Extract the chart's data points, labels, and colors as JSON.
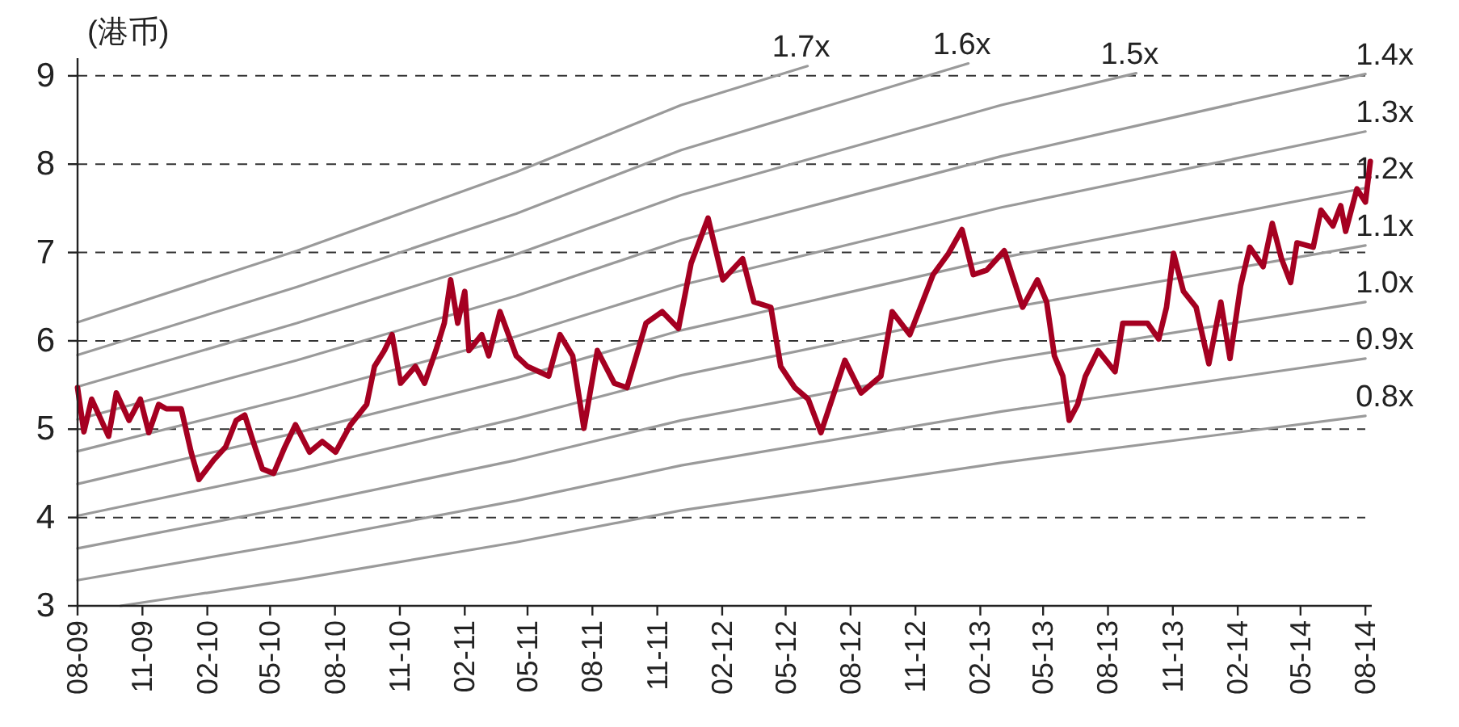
{
  "chart_data": {
    "type": "line",
    "ylabel": "(港币)",
    "grid": "y",
    "ylim": [
      3,
      9.2
    ],
    "yticks": [
      3,
      4,
      5,
      6,
      7,
      8,
      9
    ],
    "xlim": [
      "2009-08-01",
      "2014-08-10"
    ],
    "xticks": [
      {
        "value": "2009-08-01",
        "label": "08-09"
      },
      {
        "value": "2009-11-01",
        "label": "11-09"
      },
      {
        "value": "2010-02-01",
        "label": "02-10"
      },
      {
        "value": "2010-05-01",
        "label": "05-10"
      },
      {
        "value": "2010-08-01",
        "label": "08-10"
      },
      {
        "value": "2010-11-01",
        "label": "11-10"
      },
      {
        "value": "2011-02-01",
        "label": "02-11"
      },
      {
        "value": "2011-05-01",
        "label": "05-11"
      },
      {
        "value": "2011-08-01",
        "label": "08-11"
      },
      {
        "value": "2011-11-01",
        "label": "11-11"
      },
      {
        "value": "2012-02-01",
        "label": "02-12"
      },
      {
        "value": "2012-05-01",
        "label": "05-12"
      },
      {
        "value": "2012-08-01",
        "label": "08-12"
      },
      {
        "value": "2012-11-01",
        "label": "11-12"
      },
      {
        "value": "2013-02-01",
        "label": "02-13"
      },
      {
        "value": "2013-05-01",
        "label": "05-13"
      },
      {
        "value": "2013-08-01",
        "label": "08-13"
      },
      {
        "value": "2013-11-01",
        "label": "11-13"
      },
      {
        "value": "2014-02-01",
        "label": "02-14"
      },
      {
        "value": "2014-05-01",
        "label": "05-14"
      },
      {
        "value": "2014-08-01",
        "label": "08-14"
      }
    ],
    "x": [
      "2009-08-01",
      "2009-08-10",
      "2009-08-21",
      "2009-09-14",
      "2009-09-25",
      "2009-10-13",
      "2009-10-29",
      "2009-11-10",
      "2009-11-24",
      "2009-12-05",
      "2009-12-26",
      "2010-01-09",
      "2010-01-20",
      "2010-02-10",
      "2010-02-27",
      "2010-03-14",
      "2010-03-26",
      "2010-04-07",
      "2010-04-20",
      "2010-05-06",
      "2010-05-22",
      "2010-06-06",
      "2010-06-26",
      "2010-07-14",
      "2010-08-02",
      "2010-08-23",
      "2010-09-15",
      "2010-09-26",
      "2010-10-10",
      "2010-10-21",
      "2010-11-02",
      "2010-11-23",
      "2010-12-06",
      "2010-12-22",
      "2011-01-03",
      "2011-01-12",
      "2011-01-22",
      "2011-02-01",
      "2011-02-07",
      "2011-02-25",
      "2011-03-07",
      "2011-03-23",
      "2011-04-15",
      "2011-05-01",
      "2011-05-31",
      "2011-06-16",
      "2011-07-04",
      "2011-07-20",
      "2011-08-08",
      "2011-09-01",
      "2011-09-19",
      "2011-10-16",
      "2011-11-08",
      "2011-12-01",
      "2011-12-19",
      "2012-01-12",
      "2012-02-02",
      "2012-03-01",
      "2012-03-17",
      "2012-04-10",
      "2012-04-24",
      "2012-05-14",
      "2012-06-02",
      "2012-06-20",
      "2012-07-24",
      "2012-08-16",
      "2012-09-13",
      "2012-09-29",
      "2012-10-24",
      "2012-11-26",
      "2012-12-18",
      "2013-01-06",
      "2013-01-22",
      "2013-02-10",
      "2013-03-07",
      "2013-04-02",
      "2013-04-23",
      "2013-05-06",
      "2013-05-17",
      "2013-05-29",
      "2013-06-07",
      "2013-06-19",
      "2013-06-30",
      "2013-07-18",
      "2013-08-11",
      "2013-08-22",
      "2013-09-26",
      "2013-10-12",
      "2013-10-23",
      "2013-11-02",
      "2013-11-16",
      "2013-12-04",
      "2013-12-22",
      "2014-01-08",
      "2014-01-21",
      "2014-02-05",
      "2014-02-18",
      "2014-03-09",
      "2014-03-22",
      "2014-04-04",
      "2014-04-17",
      "2014-04-26",
      "2014-05-19",
      "2014-05-30",
      "2014-06-16",
      "2014-06-27",
      "2014-07-04",
      "2014-07-20",
      "2014-08-01",
      "2014-08-08"
    ],
    "series": [
      {
        "name": "1.7x",
        "color": "#9a9a9a",
        "x": [
          "2009-08-01",
          "2010-06-08",
          "2011-04-15",
          "2011-12-05",
          "2012-06-01"
        ],
        "values": [
          6.21,
          7.02,
          7.91,
          8.67,
          9.11
        ]
      },
      {
        "name": "1.6x",
        "color": "#9a9a9a",
        "x": [
          "2009-08-01",
          "2010-06-08",
          "2011-04-15",
          "2011-12-05",
          "2013-01-15"
        ],
        "values": [
          5.84,
          6.61,
          7.44,
          8.16,
          9.14
        ]
      },
      {
        "name": "1.5x",
        "color": "#9a9a9a",
        "x": [
          "2009-08-01",
          "2010-06-08",
          "2011-04-15",
          "2011-12-05",
          "2013-03-03",
          "2013-09-10"
        ],
        "values": [
          5.48,
          6.2,
          6.98,
          7.65,
          8.67,
          9.03
        ]
      },
      {
        "name": "1.4x",
        "color": "#9a9a9a",
        "x": [
          "2009-08-01",
          "2010-06-08",
          "2011-04-15",
          "2011-12-05",
          "2013-03-03",
          "2014-08-01"
        ],
        "values": [
          5.11,
          5.78,
          6.51,
          7.14,
          8.09,
          9.02
        ]
      },
      {
        "name": "1.3x",
        "color": "#9a9a9a",
        "x": [
          "2009-08-01",
          "2010-06-08",
          "2011-04-15",
          "2011-12-05",
          "2013-03-03",
          "2014-08-01"
        ],
        "values": [
          4.75,
          5.37,
          6.05,
          6.63,
          7.51,
          8.37
        ]
      },
      {
        "name": "1.2x",
        "color": "#9a9a9a",
        "x": [
          "2009-08-01",
          "2010-06-08",
          "2011-04-15",
          "2011-12-05",
          "2013-03-03",
          "2014-08-01"
        ],
        "values": [
          4.38,
          4.96,
          5.58,
          6.12,
          6.94,
          7.73
        ]
      },
      {
        "name": "1.1x",
        "color": "#9a9a9a",
        "x": [
          "2009-08-01",
          "2010-06-08",
          "2011-04-15",
          "2011-12-05",
          "2013-03-03",
          "2014-08-01"
        ],
        "values": [
          4.02,
          4.54,
          5.12,
          5.61,
          6.36,
          7.08
        ]
      },
      {
        "name": "1.0x",
        "color": "#9a9a9a",
        "x": [
          "2009-08-01",
          "2010-06-08",
          "2011-04-15",
          "2011-12-05",
          "2013-03-03",
          "2014-08-01"
        ],
        "values": [
          3.65,
          4.13,
          4.65,
          5.1,
          5.78,
          6.44
        ]
      },
      {
        "name": "0.9x",
        "color": "#9a9a9a",
        "x": [
          "2009-08-01",
          "2010-06-08",
          "2011-04-15",
          "2011-12-05",
          "2013-03-03",
          "2014-08-01"
        ],
        "values": [
          3.29,
          3.72,
          4.19,
          4.59,
          5.2,
          5.8
        ]
      },
      {
        "name": "0.8x",
        "color": "#9a9a9a",
        "x": [
          "2009-10-01",
          "2010-06-08",
          "2011-04-15",
          "2011-12-05",
          "2013-03-03",
          "2014-08-01"
        ],
        "values": [
          3.0,
          3.3,
          3.72,
          4.08,
          4.62,
          5.15
        ]
      },
      {
        "color": "#a50021",
        "values": [
          5.47,
          4.97,
          5.34,
          4.92,
          5.41,
          5.1,
          5.34,
          4.96,
          5.28,
          5.23,
          5.23,
          4.74,
          4.43,
          4.65,
          4.8,
          5.1,
          5.16,
          4.86,
          4.55,
          4.5,
          4.8,
          5.05,
          4.74,
          4.86,
          4.74,
          5.05,
          5.28,
          5.71,
          5.89,
          6.07,
          5.52,
          5.71,
          5.52,
          5.89,
          6.2,
          6.69,
          6.2,
          6.56,
          5.89,
          6.07,
          5.83,
          6.33,
          5.83,
          5.71,
          5.6,
          6.07,
          5.83,
          5.01,
          5.89,
          5.52,
          5.47,
          6.2,
          6.33,
          6.14,
          6.88,
          7.39,
          6.69,
          6.93,
          6.44,
          6.38,
          5.71,
          5.47,
          5.34,
          4.96,
          5.78,
          5.41,
          5.6,
          6.33,
          6.07,
          6.75,
          6.99,
          7.26,
          6.75,
          6.8,
          7.02,
          6.38,
          6.69,
          6.44,
          5.83,
          5.6,
          5.1,
          5.28,
          5.6,
          5.89,
          5.65,
          6.2,
          6.2,
          6.02,
          6.38,
          6.99,
          6.56,
          6.38,
          5.74,
          6.44,
          5.8,
          6.62,
          7.06,
          6.84,
          7.33,
          6.93,
          6.66,
          7.11,
          7.06,
          7.48,
          7.3,
          7.53,
          7.24,
          7.72,
          7.57,
          8.03
        ]
      }
    ]
  }
}
